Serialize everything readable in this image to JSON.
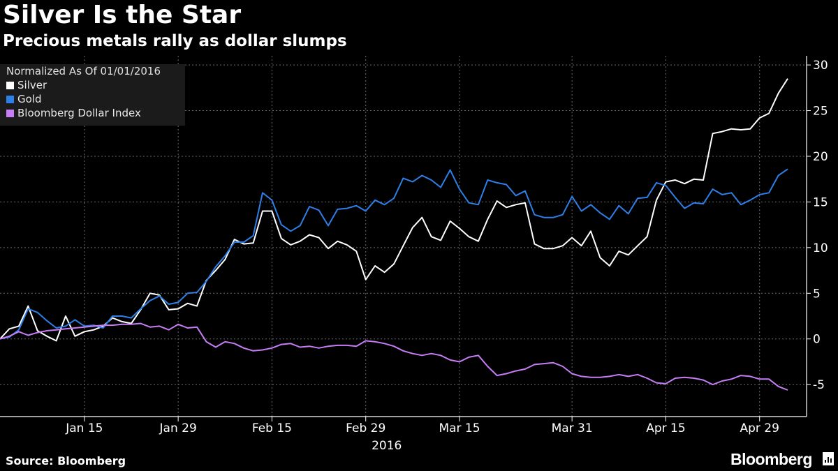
{
  "header": {
    "title": "Silver Is the Star",
    "subtitle": "Precious metals rally as dollar slumps"
  },
  "footer": {
    "source": "Source: Bloomberg",
    "brand": "Bloomberg"
  },
  "legend": {
    "header": "Normalized As Of 01/01/2016",
    "placement": "top-left"
  },
  "chart_data": {
    "type": "line",
    "ylim": [
      -8.5,
      31
    ],
    "yticks": [
      30,
      25,
      20,
      15,
      10,
      5,
      0,
      -5
    ],
    "ytick_labels": [
      "30",
      "25",
      "20",
      "15",
      "10",
      "5",
      "0",
      "-5"
    ],
    "xticks": [
      {
        "label": "Jan 15",
        "index": 9
      },
      {
        "label": "Jan 29",
        "index": 19
      },
      {
        "label": "Feb 15",
        "index": 29
      },
      {
        "label": "Feb 29",
        "index": 39
      },
      {
        "label": "Mar 15",
        "index": 49
      },
      {
        "label": "Mar 31",
        "index": 61
      },
      {
        "label": "Apr 15",
        "index": 71
      },
      {
        "label": "Apr 29",
        "index": 81
      }
    ],
    "x_sub_label": "2016",
    "grid": true,
    "series": [
      {
        "name": "Silver",
        "color": "#ffffff",
        "values": [
          0,
          1.1,
          1.4,
          3.6,
          0.9,
          0.3,
          -0.2,
          2.5,
          0.3,
          0.8,
          1.0,
          1.4,
          2.3,
          1.9,
          1.7,
          3.2,
          5.0,
          4.8,
          3.2,
          3.3,
          3.9,
          3.6,
          6.4,
          7.5,
          8.7,
          10.9,
          10.4,
          10.5,
          14.0,
          14.0,
          11.0,
          10.3,
          10.7,
          11.4,
          11.1,
          9.9,
          10.7,
          10.3,
          9.6,
          6.5,
          8.0,
          7.3,
          8.2,
          10.2,
          12.2,
          13.3,
          11.2,
          10.8,
          12.9,
          12.1,
          11.2,
          10.7,
          13.1,
          15.1,
          14.4,
          14.7,
          14.9,
          10.4,
          9.9,
          9.9,
          10.2,
          11.1,
          10.2,
          11.8,
          8.9,
          8.0,
          9.6,
          9.2,
          10.2,
          11.2,
          15.2,
          17.2,
          17.4,
          17.0,
          17.5,
          17.4,
          22.5,
          22.7,
          23.0,
          22.9,
          23.0,
          24.2,
          24.7,
          26.9,
          28.5
        ]
      },
      {
        "name": "Gold",
        "color": "#2e7fe8",
        "values": [
          0,
          0.2,
          1.0,
          3.3,
          2.9,
          2.0,
          1.2,
          1.4,
          2.1,
          1.4,
          1.5,
          1.2,
          2.5,
          2.5,
          2.3,
          3.3,
          4.2,
          4.7,
          3.8,
          4.0,
          5.0,
          5.1,
          6.3,
          7.9,
          9.1,
          10.6,
          10.6,
          11.3,
          16.0,
          15.2,
          12.5,
          11.8,
          12.4,
          14.5,
          14.1,
          12.4,
          14.2,
          14.3,
          14.6,
          14.0,
          15.2,
          14.7,
          15.4,
          17.6,
          17.2,
          17.9,
          17.4,
          16.6,
          18.5,
          16.4,
          14.9,
          14.7,
          17.4,
          17.1,
          16.9,
          15.7,
          16.2,
          13.6,
          13.3,
          13.3,
          13.6,
          15.6,
          14.0,
          14.7,
          13.8,
          13.1,
          14.6,
          13.7,
          15.4,
          15.5,
          17.1,
          16.8,
          15.5,
          14.3,
          14.9,
          14.8,
          16.4,
          15.8,
          16.0,
          14.7,
          15.2,
          15.8,
          16.0,
          17.9,
          18.6
        ]
      },
      {
        "name": "Bloomberg Dollar Index",
        "color": "#c77df5",
        "values": [
          0,
          0.3,
          0.8,
          0.4,
          0.7,
          0.9,
          1.0,
          1.1,
          1.2,
          1.3,
          1.4,
          1.5,
          1.5,
          1.6,
          1.6,
          1.7,
          1.3,
          1.4,
          1.0,
          1.6,
          1.2,
          1.3,
          -0.3,
          -0.9,
          -0.3,
          -0.5,
          -1.0,
          -1.3,
          -1.2,
          -1.0,
          -0.6,
          -0.5,
          -0.9,
          -0.8,
          -1.0,
          -0.8,
          -0.7,
          -0.7,
          -0.8,
          -0.2,
          -0.3,
          -0.5,
          -0.8,
          -1.3,
          -1.6,
          -1.8,
          -1.6,
          -1.8,
          -2.3,
          -2.5,
          -2.0,
          -1.8,
          -3.0,
          -4.0,
          -3.8,
          -3.5,
          -3.3,
          -2.8,
          -2.7,
          -2.6,
          -3.0,
          -3.8,
          -4.1,
          -4.2,
          -4.2,
          -4.1,
          -3.9,
          -4.1,
          -3.9,
          -4.3,
          -4.8,
          -4.9,
          -4.3,
          -4.2,
          -4.3,
          -4.5,
          -5.0,
          -4.6,
          -4.4,
          -4.0,
          -4.1,
          -4.4,
          -4.4,
          -5.2,
          -5.6
        ]
      }
    ]
  }
}
